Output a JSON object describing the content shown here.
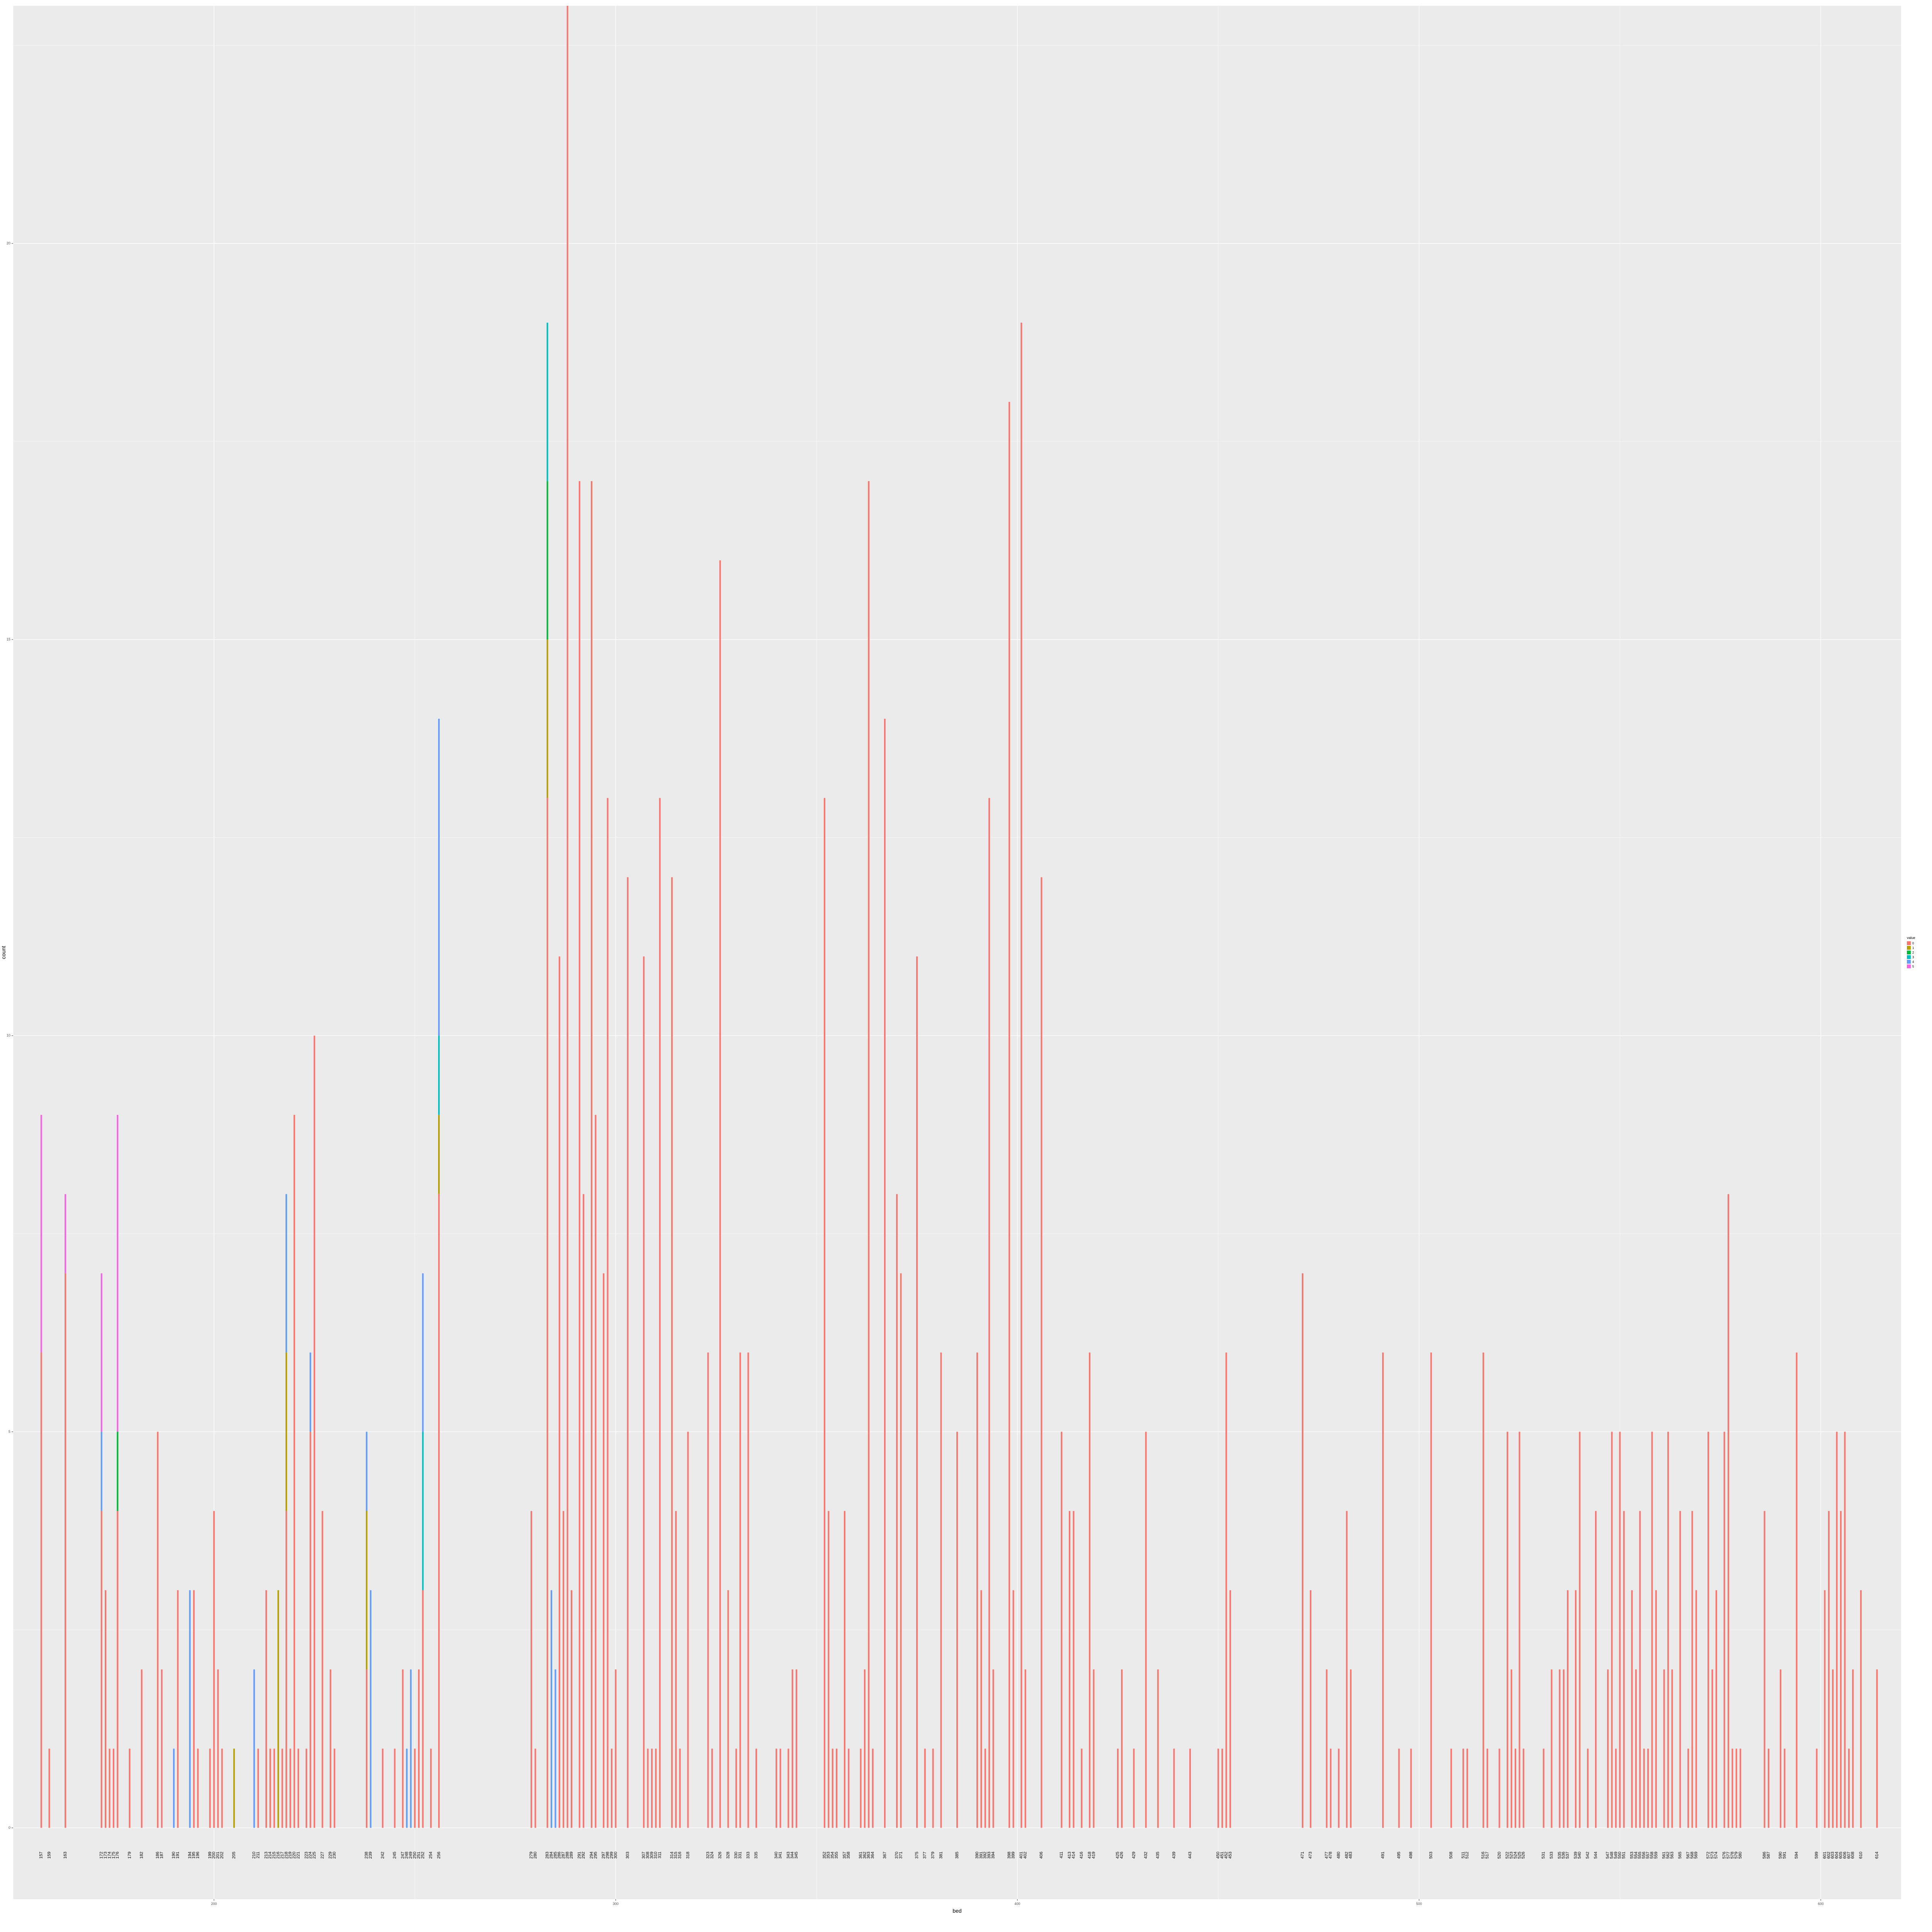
{
  "chart_data": {
    "type": "bar",
    "xlabel": "bed",
    "ylabel": "count",
    "xlim": [
      150,
      620
    ],
    "ylim": [
      -0.9,
      23
    ],
    "x_ticks": [
      200,
      300,
      400,
      500,
      600
    ],
    "y_ticks": [
      0,
      5,
      10,
      15,
      20
    ],
    "grid": true,
    "legend": {
      "title": "value",
      "placement": "right",
      "entries": [
        {
          "label": "0",
          "color": "#F8766D"
        },
        {
          "label": "1",
          "color": "#B79F00"
        },
        {
          "label": "2",
          "color": "#00BA38"
        },
        {
          "label": "3",
          "color": "#00BFC4"
        },
        {
          "label": "4",
          "color": "#619CFF"
        },
        {
          "label": "5",
          "color": "#F564E3"
        }
      ]
    },
    "bars": [
      {
        "x": 157,
        "stack": [
          6,
          0,
          0,
          0,
          0,
          3
        ]
      },
      {
        "x": 159,
        "stack": [
          1
        ]
      },
      {
        "x": 163,
        "stack": [
          7,
          0,
          0,
          0,
          0,
          1
        ]
      },
      {
        "x": 172,
        "stack": [
          4,
          0,
          0,
          0,
          1,
          2
        ]
      },
      {
        "x": 173,
        "stack": [
          3
        ]
      },
      {
        "x": 174,
        "stack": [
          1
        ]
      },
      {
        "x": 175,
        "stack": [
          1
        ]
      },
      {
        "x": 176,
        "stack": [
          4,
          0,
          1,
          0,
          0,
          4
        ]
      },
      {
        "x": 179,
        "stack": [
          1
        ]
      },
      {
        "x": 182,
        "stack": [
          2
        ]
      },
      {
        "x": 186,
        "stack": [
          5
        ]
      },
      {
        "x": 187,
        "stack": [
          2
        ]
      },
      {
        "x": 190,
        "stack": [
          0,
          0,
          0,
          0,
          1
        ]
      },
      {
        "x": 191,
        "stack": [
          3
        ]
      },
      {
        "x": 194,
        "stack": [
          0,
          0,
          0,
          0,
          3
        ]
      },
      {
        "x": 195,
        "stack": [
          3
        ]
      },
      {
        "x": 196,
        "stack": [
          1
        ]
      },
      {
        "x": 199,
        "stack": [
          1
        ]
      },
      {
        "x": 200,
        "stack": [
          4
        ]
      },
      {
        "x": 201,
        "stack": [
          2
        ]
      },
      {
        "x": 202,
        "stack": [
          1
        ]
      },
      {
        "x": 205,
        "stack": [
          0,
          1
        ]
      },
      {
        "x": 210,
        "stack": [
          0,
          0,
          0,
          0,
          2
        ]
      },
      {
        "x": 211,
        "stack": [
          1
        ]
      },
      {
        "x": 213,
        "stack": [
          3
        ]
      },
      {
        "x": 214,
        "stack": [
          1
        ]
      },
      {
        "x": 215,
        "stack": [
          1
        ]
      },
      {
        "x": 216,
        "stack": [
          0,
          3
        ]
      },
      {
        "x": 217,
        "stack": [
          1
        ]
      },
      {
        "x": 218,
        "stack": [
          4,
          2,
          0,
          0,
          2
        ]
      },
      {
        "x": 219,
        "stack": [
          1
        ]
      },
      {
        "x": 220,
        "stack": [
          9
        ]
      },
      {
        "x": 221,
        "stack": [
          1
        ]
      },
      {
        "x": 223,
        "stack": [
          1
        ]
      },
      {
        "x": 224,
        "stack": [
          5,
          0,
          0,
          0,
          1
        ]
      },
      {
        "x": 225,
        "stack": [
          10
        ]
      },
      {
        "x": 227,
        "stack": [
          4
        ]
      },
      {
        "x": 229,
        "stack": [
          2
        ]
      },
      {
        "x": 230,
        "stack": [
          1
        ]
      },
      {
        "x": 238,
        "stack": [
          2,
          2,
          0,
          0,
          1
        ]
      },
      {
        "x": 239,
        "stack": [
          0,
          0,
          0,
          0,
          3
        ]
      },
      {
        "x": 242,
        "stack": [
          1
        ]
      },
      {
        "x": 245,
        "stack": [
          1
        ]
      },
      {
        "x": 247,
        "stack": [
          2
        ]
      },
      {
        "x": 248,
        "stack": [
          0,
          0,
          0,
          0,
          1
        ]
      },
      {
        "x": 249,
        "stack": [
          0,
          0,
          0,
          0,
          2
        ]
      },
      {
        "x": 250,
        "stack": [
          1
        ]
      },
      {
        "x": 251,
        "stack": [
          2
        ]
      },
      {
        "x": 252,
        "stack": [
          3,
          0,
          0,
          2,
          2
        ]
      },
      {
        "x": 254,
        "stack": [
          1
        ]
      },
      {
        "x": 256,
        "stack": [
          8,
          1,
          0,
          1,
          4
        ]
      },
      {
        "x": 279,
        "stack": [
          4
        ]
      },
      {
        "x": 280,
        "stack": [
          1
        ]
      },
      {
        "x": 283,
        "stack": [
          13,
          2,
          2,
          2
        ]
      },
      {
        "x": 284,
        "stack": [
          0,
          0,
          0,
          0,
          3
        ]
      },
      {
        "x": 285,
        "stack": [
          0,
          0,
          0,
          0,
          2
        ]
      },
      {
        "x": 286,
        "stack": [
          11
        ]
      },
      {
        "x": 287,
        "stack": [
          4
        ]
      },
      {
        "x": 288,
        "stack": [
          23
        ]
      },
      {
        "x": 289,
        "stack": [
          3
        ]
      },
      {
        "x": 291,
        "stack": [
          17
        ]
      },
      {
        "x": 292,
        "stack": [
          8
        ]
      },
      {
        "x": 294,
        "stack": [
          17
        ]
      },
      {
        "x": 295,
        "stack": [
          9
        ]
      },
      {
        "x": 297,
        "stack": [
          7
        ]
      },
      {
        "x": 298,
        "stack": [
          13
        ]
      },
      {
        "x": 299,
        "stack": [
          1
        ]
      },
      {
        "x": 300,
        "stack": [
          2
        ]
      },
      {
        "x": 303,
        "stack": [
          12
        ]
      },
      {
        "x": 307,
        "stack": [
          11
        ]
      },
      {
        "x": 308,
        "stack": [
          1
        ]
      },
      {
        "x": 309,
        "stack": [
          1
        ]
      },
      {
        "x": 310,
        "stack": [
          1
        ]
      },
      {
        "x": 311,
        "stack": [
          13
        ]
      },
      {
        "x": 314,
        "stack": [
          12
        ]
      },
      {
        "x": 315,
        "stack": [
          4
        ]
      },
      {
        "x": 316,
        "stack": [
          1
        ]
      },
      {
        "x": 318,
        "stack": [
          5
        ]
      },
      {
        "x": 323,
        "stack": [
          6
        ]
      },
      {
        "x": 324,
        "stack": [
          1
        ]
      },
      {
        "x": 326,
        "stack": [
          16
        ]
      },
      {
        "x": 328,
        "stack": [
          3
        ]
      },
      {
        "x": 330,
        "stack": [
          1
        ]
      },
      {
        "x": 331,
        "stack": [
          6
        ]
      },
      {
        "x": 333,
        "stack": [
          6
        ]
      },
      {
        "x": 335,
        "stack": [
          1
        ]
      },
      {
        "x": 340,
        "stack": [
          1
        ]
      },
      {
        "x": 341,
        "stack": [
          1
        ]
      },
      {
        "x": 343,
        "stack": [
          1
        ]
      },
      {
        "x": 344,
        "stack": [
          2
        ]
      },
      {
        "x": 345,
        "stack": [
          2
        ]
      },
      {
        "x": 352,
        "stack": [
          13
        ]
      },
      {
        "x": 353,
        "stack": [
          4
        ]
      },
      {
        "x": 354,
        "stack": [
          1
        ]
      },
      {
        "x": 355,
        "stack": [
          1
        ]
      },
      {
        "x": 357,
        "stack": [
          4
        ]
      },
      {
        "x": 358,
        "stack": [
          1
        ]
      },
      {
        "x": 361,
        "stack": [
          1
        ]
      },
      {
        "x": 362,
        "stack": [
          2
        ]
      },
      {
        "x": 363,
        "stack": [
          17
        ]
      },
      {
        "x": 364,
        "stack": [
          1
        ]
      },
      {
        "x": 367,
        "stack": [
          14
        ]
      },
      {
        "x": 370,
        "stack": [
          8
        ]
      },
      {
        "x": 371,
        "stack": [
          7
        ]
      },
      {
        "x": 375,
        "stack": [
          11
        ]
      },
      {
        "x": 377,
        "stack": [
          1
        ]
      },
      {
        "x": 379,
        "stack": [
          1
        ]
      },
      {
        "x": 381,
        "stack": [
          6
        ]
      },
      {
        "x": 385,
        "stack": [
          5
        ]
      },
      {
        "x": 390,
        "stack": [
          6
        ]
      },
      {
        "x": 391,
        "stack": [
          3
        ]
      },
      {
        "x": 392,
        "stack": [
          1
        ]
      },
      {
        "x": 393,
        "stack": [
          13
        ]
      },
      {
        "x": 394,
        "stack": [
          2
        ]
      },
      {
        "x": 398,
        "stack": [
          18
        ]
      },
      {
        "x": 399,
        "stack": [
          3
        ]
      },
      {
        "x": 401,
        "stack": [
          19
        ]
      },
      {
        "x": 402,
        "stack": [
          2
        ]
      },
      {
        "x": 406,
        "stack": [
          12
        ]
      },
      {
        "x": 411,
        "stack": [
          5
        ]
      },
      {
        "x": 413,
        "stack": [
          4
        ]
      },
      {
        "x": 414,
        "stack": [
          4
        ]
      },
      {
        "x": 416,
        "stack": [
          1
        ]
      },
      {
        "x": 418,
        "stack": [
          6
        ]
      },
      {
        "x": 419,
        "stack": [
          2
        ]
      },
      {
        "x": 425,
        "stack": [
          1
        ]
      },
      {
        "x": 426,
        "stack": [
          2
        ]
      },
      {
        "x": 429,
        "stack": [
          1
        ]
      },
      {
        "x": 432,
        "stack": [
          5
        ]
      },
      {
        "x": 435,
        "stack": [
          2
        ]
      },
      {
        "x": 439,
        "stack": [
          1
        ]
      },
      {
        "x": 443,
        "stack": [
          1
        ]
      },
      {
        "x": 450,
        "stack": [
          1
        ]
      },
      {
        "x": 451,
        "stack": [
          1
        ]
      },
      {
        "x": 452,
        "stack": [
          6
        ]
      },
      {
        "x": 453,
        "stack": [
          3
        ]
      },
      {
        "x": 471,
        "stack": [
          7
        ]
      },
      {
        "x": 473,
        "stack": [
          3
        ]
      },
      {
        "x": 477,
        "stack": [
          2
        ]
      },
      {
        "x": 478,
        "stack": [
          1
        ]
      },
      {
        "x": 480,
        "stack": [
          1
        ]
      },
      {
        "x": 482,
        "stack": [
          4
        ]
      },
      {
        "x": 483,
        "stack": [
          2
        ]
      },
      {
        "x": 491,
        "stack": [
          6
        ]
      },
      {
        "x": 495,
        "stack": [
          1
        ]
      },
      {
        "x": 498,
        "stack": [
          1
        ]
      },
      {
        "x": 503,
        "stack": [
          6
        ]
      },
      {
        "x": 508,
        "stack": [
          1
        ]
      },
      {
        "x": 511,
        "stack": [
          1
        ]
      },
      {
        "x": 512,
        "stack": [
          1
        ]
      },
      {
        "x": 516,
        "stack": [
          6
        ]
      },
      {
        "x": 517,
        "stack": [
          1
        ]
      },
      {
        "x": 520,
        "stack": [
          1
        ]
      },
      {
        "x": 522,
        "stack": [
          5
        ]
      },
      {
        "x": 523,
        "stack": [
          2
        ]
      },
      {
        "x": 524,
        "stack": [
          1
        ]
      },
      {
        "x": 525,
        "stack": [
          5
        ]
      },
      {
        "x": 526,
        "stack": [
          1
        ]
      },
      {
        "x": 531,
        "stack": [
          1
        ]
      },
      {
        "x": 533,
        "stack": [
          2
        ]
      },
      {
        "x": 535,
        "stack": [
          2
        ]
      },
      {
        "x": 536,
        "stack": [
          2
        ]
      },
      {
        "x": 537,
        "stack": [
          3
        ]
      },
      {
        "x": 539,
        "stack": [
          3
        ]
      },
      {
        "x": 540,
        "stack": [
          5
        ]
      },
      {
        "x": 542,
        "stack": [
          1
        ]
      },
      {
        "x": 544,
        "stack": [
          4
        ]
      },
      {
        "x": 547,
        "stack": [
          2
        ]
      },
      {
        "x": 548,
        "stack": [
          5
        ]
      },
      {
        "x": 549,
        "stack": [
          1
        ]
      },
      {
        "x": 550,
        "stack": [
          5
        ]
      },
      {
        "x": 551,
        "stack": [
          4
        ]
      },
      {
        "x": 553,
        "stack": [
          3
        ]
      },
      {
        "x": 554,
        "stack": [
          2
        ]
      },
      {
        "x": 555,
        "stack": [
          4
        ]
      },
      {
        "x": 556,
        "stack": [
          1
        ]
      },
      {
        "x": 557,
        "stack": [
          1
        ]
      },
      {
        "x": 558,
        "stack": [
          5
        ]
      },
      {
        "x": 559,
        "stack": [
          3
        ]
      },
      {
        "x": 561,
        "stack": [
          2
        ]
      },
      {
        "x": 562,
        "stack": [
          5
        ]
      },
      {
        "x": 563,
        "stack": [
          2
        ]
      },
      {
        "x": 565,
        "stack": [
          4
        ]
      },
      {
        "x": 567,
        "stack": [
          1
        ]
      },
      {
        "x": 568,
        "stack": [
          4
        ]
      },
      {
        "x": 569,
        "stack": [
          3
        ]
      },
      {
        "x": 572,
        "stack": [
          5
        ]
      },
      {
        "x": 573,
        "stack": [
          2
        ]
      },
      {
        "x": 574,
        "stack": [
          3
        ]
      },
      {
        "x": 576,
        "stack": [
          5
        ]
      },
      {
        "x": 577,
        "stack": [
          8
        ]
      },
      {
        "x": 578,
        "stack": [
          1
        ]
      },
      {
        "x": 579,
        "stack": [
          1
        ]
      },
      {
        "x": 580,
        "stack": [
          1
        ]
      },
      {
        "x": 586,
        "stack": [
          4
        ]
      },
      {
        "x": 587,
        "stack": [
          1
        ]
      },
      {
        "x": 590,
        "stack": [
          2
        ]
      },
      {
        "x": 591,
        "stack": [
          1
        ]
      },
      {
        "x": 594,
        "stack": [
          6
        ]
      },
      {
        "x": 599,
        "stack": [
          1
        ]
      },
      {
        "x": 601,
        "stack": [
          3
        ]
      },
      {
        "x": 602,
        "stack": [
          4
        ]
      },
      {
        "x": 603,
        "stack": [
          2
        ]
      },
      {
        "x": 604,
        "stack": [
          5
        ]
      },
      {
        "x": 605,
        "stack": [
          4
        ]
      },
      {
        "x": 606,
        "stack": [
          5
        ]
      },
      {
        "x": 607,
        "stack": [
          1
        ]
      },
      {
        "x": 608,
        "stack": [
          2
        ]
      },
      {
        "x": 610,
        "stack": [
          3
        ]
      },
      {
        "x": 614,
        "stack": [
          2
        ]
      }
    ]
  }
}
